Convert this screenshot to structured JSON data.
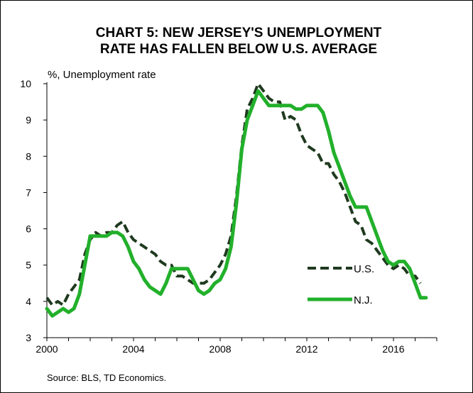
{
  "chart_data": {
    "type": "line",
    "title": [
      "CHART 5: NEW JERSEY'S UNEMPLOYMENT",
      "RATE  HAS FALLEN BELOW U.S. AVERAGE"
    ],
    "ylabel": "%, Unemployment rate",
    "source": "Source: BLS, TD Economics.",
    "xlim": [
      2000,
      2018
    ],
    "ylim": [
      3,
      10
    ],
    "x_ticks": [
      2000,
      2004,
      2008,
      2012,
      2016
    ],
    "y_ticks": [
      3,
      4,
      5,
      6,
      7,
      8,
      9,
      10
    ],
    "grid": false,
    "legend_position": "bottom-right",
    "series": [
      {
        "name": "U.S.",
        "style": "dashed",
        "color": "#1f3a1f",
        "points": [
          [
            2000.0,
            4.1
          ],
          [
            2000.25,
            3.9
          ],
          [
            2000.5,
            4.0
          ],
          [
            2000.75,
            3.9
          ],
          [
            2001.0,
            4.2
          ],
          [
            2001.25,
            4.4
          ],
          [
            2001.5,
            4.6
          ],
          [
            2001.75,
            5.3
          ],
          [
            2002.0,
            5.7
          ],
          [
            2002.25,
            5.9
          ],
          [
            2002.5,
            5.8
          ],
          [
            2002.75,
            5.9
          ],
          [
            2003.0,
            5.9
          ],
          [
            2003.25,
            6.1
          ],
          [
            2003.5,
            6.2
          ],
          [
            2003.75,
            5.9
          ],
          [
            2004.0,
            5.7
          ],
          [
            2004.25,
            5.6
          ],
          [
            2004.5,
            5.5
          ],
          [
            2004.75,
            5.4
          ],
          [
            2005.0,
            5.3
          ],
          [
            2005.25,
            5.1
          ],
          [
            2005.5,
            5.0
          ],
          [
            2005.75,
            5.0
          ],
          [
            2006.0,
            4.7
          ],
          [
            2006.25,
            4.7
          ],
          [
            2006.5,
            4.6
          ],
          [
            2006.75,
            4.5
          ],
          [
            2007.0,
            4.5
          ],
          [
            2007.25,
            4.5
          ],
          [
            2007.5,
            4.6
          ],
          [
            2007.75,
            4.8
          ],
          [
            2008.0,
            5.0
          ],
          [
            2008.25,
            5.3
          ],
          [
            2008.5,
            5.8
          ],
          [
            2008.75,
            6.9
          ],
          [
            2009.0,
            8.3
          ],
          [
            2009.25,
            9.3
          ],
          [
            2009.5,
            9.6
          ],
          [
            2009.75,
            10.0
          ],
          [
            2010.0,
            9.8
          ],
          [
            2010.25,
            9.6
          ],
          [
            2010.5,
            9.5
          ],
          [
            2010.75,
            9.5
          ],
          [
            2011.0,
            9.0
          ],
          [
            2011.25,
            9.1
          ],
          [
            2011.5,
            9.0
          ],
          [
            2011.75,
            8.6
          ],
          [
            2012.0,
            8.3
          ],
          [
            2012.25,
            8.2
          ],
          [
            2012.5,
            8.1
          ],
          [
            2012.75,
            7.8
          ],
          [
            2013.0,
            7.8
          ],
          [
            2013.25,
            7.5
          ],
          [
            2013.5,
            7.3
          ],
          [
            2013.75,
            7.0
          ],
          [
            2014.0,
            6.6
          ],
          [
            2014.25,
            6.2
          ],
          [
            2014.5,
            6.1
          ],
          [
            2014.75,
            5.7
          ],
          [
            2015.0,
            5.6
          ],
          [
            2015.25,
            5.4
          ],
          [
            2015.5,
            5.2
          ],
          [
            2015.75,
            5.0
          ],
          [
            2016.0,
            4.9
          ],
          [
            2016.25,
            5.0
          ],
          [
            2016.5,
            4.9
          ],
          [
            2016.75,
            4.7
          ],
          [
            2017.0,
            4.7
          ],
          [
            2017.25,
            4.5
          ]
        ]
      },
      {
        "name": "N.J.",
        "style": "solid",
        "color": "#22b02b",
        "points": [
          [
            2000.0,
            3.8
          ],
          [
            2000.25,
            3.6
          ],
          [
            2000.5,
            3.7
          ],
          [
            2000.75,
            3.8
          ],
          [
            2001.0,
            3.7
          ],
          [
            2001.25,
            3.8
          ],
          [
            2001.5,
            4.2
          ],
          [
            2001.75,
            5.0
          ],
          [
            2002.0,
            5.8
          ],
          [
            2002.25,
            5.8
          ],
          [
            2002.5,
            5.8
          ],
          [
            2002.75,
            5.8
          ],
          [
            2003.0,
            5.9
          ],
          [
            2003.25,
            5.9
          ],
          [
            2003.5,
            5.8
          ],
          [
            2003.75,
            5.5
          ],
          [
            2004.0,
            5.1
          ],
          [
            2004.25,
            4.9
          ],
          [
            2004.5,
            4.6
          ],
          [
            2004.75,
            4.4
          ],
          [
            2005.0,
            4.3
          ],
          [
            2005.25,
            4.2
          ],
          [
            2005.5,
            4.5
          ],
          [
            2005.75,
            4.9
          ],
          [
            2006.0,
            4.9
          ],
          [
            2006.25,
            4.9
          ],
          [
            2006.5,
            4.9
          ],
          [
            2006.75,
            4.6
          ],
          [
            2007.0,
            4.3
          ],
          [
            2007.25,
            4.2
          ],
          [
            2007.5,
            4.3
          ],
          [
            2007.75,
            4.5
          ],
          [
            2008.0,
            4.6
          ],
          [
            2008.25,
            4.9
          ],
          [
            2008.5,
            5.5
          ],
          [
            2008.75,
            6.7
          ],
          [
            2009.0,
            8.2
          ],
          [
            2009.25,
            9.0
          ],
          [
            2009.5,
            9.4
          ],
          [
            2009.75,
            9.8
          ],
          [
            2010.0,
            9.6
          ],
          [
            2010.25,
            9.4
          ],
          [
            2010.5,
            9.4
          ],
          [
            2010.75,
            9.4
          ],
          [
            2011.0,
            9.4
          ],
          [
            2011.25,
            9.4
          ],
          [
            2011.5,
            9.3
          ],
          [
            2011.75,
            9.3
          ],
          [
            2012.0,
            9.4
          ],
          [
            2012.25,
            9.4
          ],
          [
            2012.5,
            9.4
          ],
          [
            2012.75,
            9.2
          ],
          [
            2013.0,
            8.7
          ],
          [
            2013.25,
            8.1
          ],
          [
            2013.5,
            7.7
          ],
          [
            2013.75,
            7.3
          ],
          [
            2014.0,
            6.9
          ],
          [
            2014.25,
            6.6
          ],
          [
            2014.5,
            6.6
          ],
          [
            2014.75,
            6.6
          ],
          [
            2015.0,
            6.2
          ],
          [
            2015.25,
            5.8
          ],
          [
            2015.5,
            5.4
          ],
          [
            2015.75,
            5.1
          ],
          [
            2016.0,
            5.0
          ],
          [
            2016.25,
            5.1
          ],
          [
            2016.5,
            5.1
          ],
          [
            2016.75,
            4.9
          ],
          [
            2017.0,
            4.5
          ],
          [
            2017.25,
            4.1
          ],
          [
            2017.5,
            4.1
          ]
        ]
      }
    ]
  }
}
